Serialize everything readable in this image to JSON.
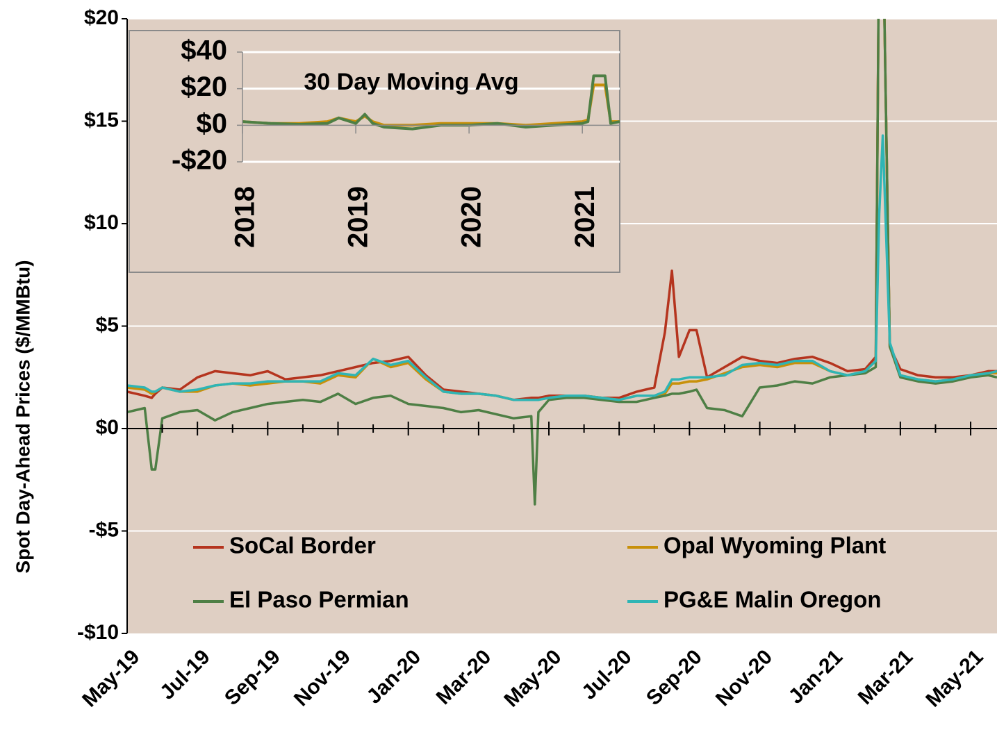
{
  "chart_data": [
    {
      "type": "line",
      "y_label": "Spot Day-Ahead Prices ($/MMBtu)",
      "x": [
        0,
        0.5,
        0.7,
        0.8,
        1,
        1.5,
        2,
        2.5,
        3,
        3.5,
        4,
        4.5,
        5,
        5.5,
        6,
        6.5,
        7,
        7.5,
        8,
        8.5,
        9,
        9.5,
        10,
        10.5,
        11,
        11.5,
        11.6,
        11.7,
        12,
        12.5,
        13,
        13.5,
        14,
        14.5,
        15,
        15.3,
        15.5,
        15.7,
        16,
        16.2,
        16.5,
        17,
        17.5,
        18,
        18.5,
        19,
        19.5,
        20,
        20.5,
        21,
        21.3,
        21.4,
        21.5,
        21.7,
        22,
        22.5,
        23,
        23.5,
        24,
        24.5,
        24.75
      ],
      "xlim": [
        0,
        24.75
      ],
      "xticks": [
        {
          "value": 0,
          "label": "May-19"
        },
        {
          "value": 2,
          "label": "Jul-19"
        },
        {
          "value": 4,
          "label": "Sep-19"
        },
        {
          "value": 6,
          "label": "Nov-19"
        },
        {
          "value": 8,
          "label": "Jan-20"
        },
        {
          "value": 10,
          "label": "Mar-20"
        },
        {
          "value": 12,
          "label": "May-20"
        },
        {
          "value": 14,
          "label": "Jul-20"
        },
        {
          "value": 16,
          "label": "Sep-20"
        },
        {
          "value": 18,
          "label": "Nov-20"
        },
        {
          "value": 20,
          "label": "Jan-21"
        },
        {
          "value": 22,
          "label": "Mar-21"
        },
        {
          "value": 24,
          "label": "May-21"
        }
      ],
      "ylim": [
        -10,
        20
      ],
      "yticks": [
        {
          "value": -10,
          "label": "-$10"
        },
        {
          "value": -5,
          "label": "-$5"
        },
        {
          "value": 0,
          "label": "$0"
        },
        {
          "value": 5,
          "label": "$5"
        },
        {
          "value": 10,
          "label": "$10"
        },
        {
          "value": 15,
          "label": "$15"
        },
        {
          "value": 20,
          "label": "$20"
        }
      ],
      "grid": true,
      "legend": "bottom",
      "series": [
        {
          "name": "SoCal Border",
          "color": "#b5341e",
          "values": [
            1.8,
            1.6,
            1.5,
            1.7,
            2.0,
            1.9,
            2.5,
            2.8,
            2.7,
            2.6,
            2.8,
            2.4,
            2.5,
            2.6,
            2.8,
            3.0,
            3.2,
            3.3,
            3.5,
            2.6,
            1.9,
            1.8,
            1.7,
            1.6,
            1.4,
            1.5,
            1.5,
            1.5,
            1.6,
            1.6,
            1.6,
            1.5,
            1.5,
            1.8,
            2.0,
            4.7,
            7.7,
            3.5,
            4.8,
            4.8,
            2.5,
            3.0,
            3.5,
            3.3,
            3.2,
            3.4,
            3.5,
            3.2,
            2.8,
            2.9,
            3.5,
            25,
            25,
            4.0,
            2.9,
            2.6,
            2.5,
            2.5,
            2.6,
            2.8,
            2.8
          ]
        },
        {
          "name": "Opal Wyoming Plant",
          "color": "#c8900a",
          "values": [
            2.0,
            1.9,
            1.7,
            1.8,
            2.0,
            1.8,
            1.8,
            2.1,
            2.2,
            2.1,
            2.2,
            2.3,
            2.3,
            2.2,
            2.6,
            2.5,
            3.4,
            3.0,
            3.2,
            2.4,
            1.8,
            1.7,
            1.7,
            1.6,
            1.4,
            1.4,
            1.4,
            1.4,
            1.5,
            1.6,
            1.6,
            1.5,
            1.4,
            1.6,
            1.6,
            1.7,
            2.2,
            2.2,
            2.3,
            2.3,
            2.4,
            2.7,
            3.0,
            3.1,
            3.0,
            3.2,
            3.2,
            2.8,
            2.6,
            2.8,
            3.3,
            25,
            25,
            4.0,
            2.6,
            2.4,
            2.3,
            2.4,
            2.6,
            2.7,
            2.7
          ]
        },
        {
          "name": "El Paso Permian",
          "color": "#4e7f45",
          "values": [
            0.8,
            1.0,
            -2.0,
            -2.0,
            0.5,
            0.8,
            0.9,
            0.4,
            0.8,
            1.0,
            1.2,
            1.3,
            1.4,
            1.3,
            1.7,
            1.2,
            1.5,
            1.6,
            1.2,
            1.1,
            1.0,
            0.8,
            0.9,
            0.7,
            0.5,
            0.6,
            -3.7,
            0.8,
            1.4,
            1.5,
            1.5,
            1.4,
            1.3,
            1.3,
            1.5,
            1.6,
            1.7,
            1.7,
            1.8,
            1.9,
            1.0,
            0.9,
            0.6,
            2.0,
            2.1,
            2.3,
            2.2,
            2.5,
            2.6,
            2.7,
            3.0,
            25,
            25,
            4.0,
            2.5,
            2.3,
            2.2,
            2.3,
            2.5,
            2.6,
            2.5
          ]
        },
        {
          "name": "PG&E Malin Oregon",
          "color": "#2fb5b5",
          "values": [
            2.1,
            2.0,
            1.8,
            1.8,
            2.0,
            1.8,
            1.9,
            2.1,
            2.2,
            2.2,
            2.3,
            2.3,
            2.3,
            2.3,
            2.7,
            2.6,
            3.4,
            3.1,
            3.3,
            2.5,
            1.8,
            1.7,
            1.7,
            1.6,
            1.4,
            1.4,
            1.4,
            1.4,
            1.5,
            1.6,
            1.6,
            1.5,
            1.4,
            1.6,
            1.6,
            1.8,
            2.4,
            2.4,
            2.5,
            2.5,
            2.5,
            2.6,
            3.1,
            3.2,
            3.1,
            3.3,
            3.3,
            2.8,
            2.6,
            2.8,
            3.3,
            10.5,
            14.3,
            4.2,
            2.6,
            2.4,
            2.3,
            2.4,
            2.6,
            2.7,
            2.8
          ]
        }
      ]
    },
    {
      "type": "line",
      "title": "30 Day Moving Avg",
      "x": [
        2018,
        2018.25,
        2018.5,
        2018.75,
        2018.85,
        2019,
        2019.08,
        2019.15,
        2019.25,
        2019.5,
        2019.75,
        2020,
        2020.25,
        2020.5,
        2020.75,
        2021,
        2021.05,
        2021.1,
        2021.2,
        2021.25,
        2021.33
      ],
      "xlim": [
        2018,
        2021.33
      ],
      "xticks": [
        2018,
        2019,
        2020,
        2021
      ],
      "ylim": [
        -20,
        40
      ],
      "yticks": [
        {
          "value": -20,
          "label": "-$20"
        },
        {
          "value": 0,
          "label": "$0"
        },
        {
          "value": 20,
          "label": "$20"
        },
        {
          "value": 40,
          "label": "$40"
        }
      ],
      "grid": true,
      "series": [
        {
          "name": "Opal Wyoming Plant",
          "color": "#c8900a",
          "values": [
            2,
            1,
            1,
            2,
            4,
            2,
            5,
            2,
            0,
            0,
            1,
            1,
            1,
            0,
            1,
            2,
            3,
            22,
            22,
            2,
            2
          ]
        },
        {
          "name": "El Paso Permian",
          "color": "#4e7f45",
          "values": [
            2,
            1,
            0.5,
            1,
            4,
            1,
            6,
            1,
            -1,
            -2,
            0,
            0,
            1,
            -1,
            0,
            1,
            2,
            27,
            27,
            1,
            2
          ]
        }
      ]
    }
  ]
}
